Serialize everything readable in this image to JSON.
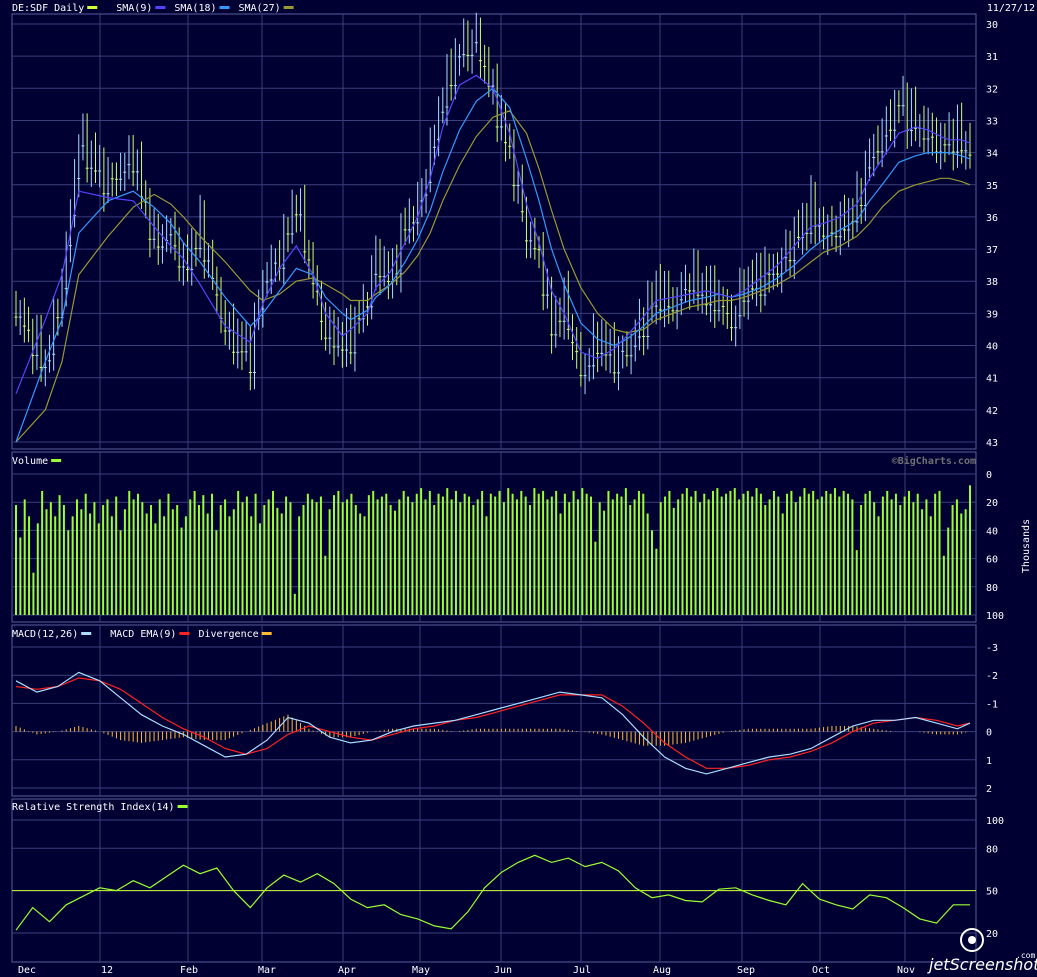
{
  "header": {
    "date": "11/27/12"
  },
  "watermark": "©BigCharts.com",
  "screenshot_badge": {
    "text": "jetScreenshot",
    "suffix": ".com"
  },
  "colors": {
    "background": "#000033",
    "grid": "#3a3f7a",
    "up_candle": "#ccff66",
    "down_candle": "#aaddff",
    "sma9": "#5544ff",
    "sma18": "#3399ff",
    "sma27": "#999933",
    "volume": "#99ff33",
    "macd": "#aaddff",
    "macd_ema": "#ff2222",
    "divergence": "#ffbb33",
    "rsi": "#99ff33",
    "rsi_midline": "#ccff33"
  },
  "chart_data": [
    {
      "type": "candlestick",
      "title": "DE:SDF Daily",
      "legend": [
        {
          "name": "DE:SDF Daily",
          "color": "#ccff33"
        },
        {
          "name": "SMA(9)",
          "color": "#5544ff"
        },
        {
          "name": "SMA(18)",
          "color": "#3399ff"
        },
        {
          "name": "SMA(27)",
          "color": "#999933"
        }
      ],
      "ylim": [
        30,
        43
      ],
      "yticks": [
        30,
        31,
        32,
        33,
        34,
        35,
        36,
        37,
        38,
        39,
        40,
        41,
        42,
        43
      ],
      "xticks": [
        "Dec",
        "12",
        "Feb",
        "Mar",
        "Apr",
        "May",
        "Jun",
        "Jul",
        "Aug",
        "Sep",
        "Oct",
        "Nov"
      ],
      "x": [
        0,
        14,
        22,
        30,
        44,
        56,
        66,
        74,
        80,
        88,
        100,
        112,
        118,
        126,
        134,
        142,
        148,
        156,
        160,
        168,
        172,
        179,
        186,
        192,
        198,
        204,
        212,
        220,
        228,
        236,
        244,
        250,
        256,
        262,
        270,
        278,
        286,
        292,
        300,
        306,
        314,
        322,
        330,
        336,
        342,
        348,
        356,
        364,
        372,
        380,
        386,
        394,
        402,
        408,
        414,
        422,
        430,
        436,
        442,
        446,
        452,
        456
      ],
      "close": [
        38.9,
        40.6,
        38.2,
        33.6,
        35.0,
        34.1,
        36.8,
        36.5,
        37.6,
        36.4,
        39.5,
        40.3,
        38.0,
        37.2,
        35.5,
        38.0,
        39.6,
        39.9,
        39.7,
        38.5,
        37.3,
        38.0,
        36.2,
        35.8,
        34.1,
        32.2,
        30.8,
        30.5,
        32.2,
        34.0,
        36.5,
        37.2,
        39.4,
        38.7,
        40.9,
        39.8,
        40.4,
        40.2,
        39.2,
        38.3,
        38.8,
        37.9,
        38.4,
        38.6,
        39.3,
        38.2,
        37.9,
        37.6,
        36.7,
        35.8,
        36.5,
        36.3,
        35.7,
        34.1,
        33.5,
        32.4,
        33.1,
        33.4,
        33.8,
        33.5,
        33.6,
        33.9
      ],
      "sma9": [
        41.5,
        39.2,
        37.8,
        35.2,
        35.4,
        35.5,
        36.3,
        36.9,
        37.3,
        38.1,
        39.4,
        39.9,
        38.7,
        37.6,
        36.9,
        37.8,
        39.0,
        39.7,
        39.5,
        39.0,
        38.2,
        37.7,
        36.8,
        36.0,
        34.8,
        33.2,
        31.9,
        31.6,
        32.0,
        33.4,
        35.6,
        36.8,
        38.3,
        39.0,
        40.2,
        40.4,
        40.1,
        39.7,
        39.1,
        38.6,
        38.5,
        38.4,
        38.3,
        38.4,
        38.5,
        38.3,
        37.9,
        37.5,
        36.9,
        36.3,
        36.2,
        36.0,
        35.6,
        34.8,
        34.2,
        33.4,
        33.2,
        33.3,
        33.5,
        33.6,
        33.6,
        33.7
      ],
      "sma18": [
        43.0,
        40.5,
        39.2,
        36.5,
        35.5,
        35.2,
        35.7,
        36.2,
        36.8,
        37.4,
        38.5,
        39.4,
        39.0,
        38.3,
        37.6,
        37.8,
        38.5,
        39.0,
        39.2,
        38.9,
        38.5,
        38.1,
        37.4,
        36.7,
        35.8,
        34.6,
        33.3,
        32.4,
        32.0,
        32.6,
        34.2,
        35.5,
        37.0,
        38.1,
        39.3,
        39.8,
        40.0,
        39.8,
        39.4,
        39.0,
        38.8,
        38.6,
        38.5,
        38.4,
        38.5,
        38.4,
        38.2,
        37.9,
        37.5,
        37.0,
        36.7,
        36.4,
        36.1,
        35.5,
        35.0,
        34.3,
        34.1,
        34.0,
        34.0,
        34.0,
        34.1,
        34.2
      ],
      "sma27": [
        43.0,
        42.0,
        40.5,
        37.8,
        36.6,
        35.7,
        35.3,
        35.6,
        36.0,
        36.6,
        37.4,
        38.3,
        38.6,
        38.4,
        38.0,
        37.9,
        38.1,
        38.4,
        38.6,
        38.6,
        38.4,
        38.1,
        37.7,
        37.2,
        36.5,
        35.5,
        34.4,
        33.5,
        32.9,
        32.7,
        33.4,
        34.5,
        35.8,
        37.0,
        38.2,
        39.0,
        39.5,
        39.6,
        39.5,
        39.2,
        39.0,
        38.8,
        38.7,
        38.6,
        38.6,
        38.5,
        38.3,
        38.1,
        37.8,
        37.4,
        37.1,
        36.9,
        36.6,
        36.2,
        35.7,
        35.2,
        35.0,
        34.9,
        34.8,
        34.8,
        34.9,
        35.0
      ]
    },
    {
      "type": "bar",
      "title": "Volume",
      "ylim": [
        0,
        100
      ],
      "yticks": [
        0,
        20,
        40,
        60,
        80,
        100
      ],
      "yunit_label": "Thousands",
      "values": [
        22,
        45,
        18,
        30,
        70,
        35,
        12,
        25,
        20,
        30,
        15,
        22,
        40,
        30,
        18,
        25,
        14,
        28,
        20,
        35,
        22,
        18,
        30,
        16,
        40,
        25,
        12,
        18,
        14,
        20,
        28,
        22,
        35,
        18,
        30,
        14,
        25,
        22,
        38,
        30,
        18,
        12,
        22,
        15,
        28,
        14,
        40,
        22,
        18,
        30,
        25,
        12,
        20,
        16,
        30,
        14,
        35,
        22,
        18,
        12,
        24,
        28,
        16,
        20,
        85,
        30,
        22,
        14,
        18,
        20,
        16,
        58,
        25,
        15,
        12,
        20,
        18,
        14,
        22,
        28,
        30,
        15,
        12,
        18,
        16,
        14,
        22,
        26,
        18,
        12,
        16,
        20,
        14,
        10,
        18,
        12,
        22,
        14,
        16,
        10,
        18,
        12,
        20,
        14,
        16,
        22,
        18,
        12,
        30,
        14,
        16,
        12,
        20,
        10,
        14,
        18,
        12,
        16,
        22,
        10,
        14,
        12,
        18,
        16,
        12,
        28,
        14,
        20,
        12,
        18,
        10,
        14,
        16,
        48,
        20,
        26,
        12,
        18,
        14,
        16,
        10,
        22,
        18,
        12,
        14,
        28,
        40,
        53,
        20,
        16,
        12,
        24,
        18,
        14,
        10,
        16,
        12,
        20,
        14,
        18,
        12,
        10,
        16,
        14,
        12,
        10,
        18,
        14,
        12,
        16,
        10,
        14,
        22,
        18,
        12,
        16,
        28,
        14,
        12,
        20,
        16,
        10,
        14,
        12,
        18,
        16,
        12,
        14,
        10,
        16,
        12,
        14,
        18,
        54,
        22,
        14,
        12,
        20,
        30,
        16,
        12,
        18,
        14,
        22,
        16,
        12,
        20,
        14,
        25,
        18,
        30,
        14,
        12,
        58,
        38,
        22,
        18,
        28,
        25,
        8
      ]
    },
    {
      "type": "line",
      "title": "MACD(12,26)",
      "legend": [
        {
          "name": "MACD(12,26)",
          "color": "#aaddff"
        },
        {
          "name": "MACD EMA(9)",
          "color": "#ff2222"
        },
        {
          "name": "Divergence",
          "color": "#ffbb33"
        }
      ],
      "ylim": [
        -3,
        2
      ],
      "yticks": [
        -3,
        -2,
        -1,
        0,
        1,
        2
      ],
      "x": [
        0,
        10,
        20,
        30,
        40,
        50,
        60,
        70,
        80,
        90,
        100,
        110,
        120,
        130,
        140,
        150,
        160,
        170,
        180,
        190,
        200,
        210,
        220,
        230,
        240,
        250,
        260,
        270,
        280,
        290,
        300,
        310,
        320,
        330,
        340,
        350,
        360,
        370,
        380,
        390,
        400,
        410,
        420,
        430,
        440,
        450,
        456
      ],
      "macd": [
        -1.8,
        -1.4,
        -1.6,
        -2.1,
        -1.8,
        -1.2,
        -0.6,
        -0.2,
        0.1,
        0.5,
        0.9,
        0.8,
        0.3,
        -0.5,
        -0.3,
        0.2,
        0.4,
        0.3,
        0.0,
        -0.2,
        -0.3,
        -0.4,
        -0.6,
        -0.8,
        -1.0,
        -1.2,
        -1.4,
        -1.3,
        -1.2,
        -0.6,
        0.2,
        0.9,
        1.3,
        1.5,
        1.3,
        1.1,
        0.9,
        0.8,
        0.6,
        0.2,
        -0.2,
        -0.4,
        -0.4,
        -0.5,
        -0.3,
        -0.1,
        -0.3
      ],
      "macd_ema": [
        -1.6,
        -1.5,
        -1.6,
        -1.9,
        -1.8,
        -1.5,
        -1.0,
        -0.5,
        -0.1,
        0.2,
        0.6,
        0.8,
        0.6,
        0.1,
        -0.2,
        0.0,
        0.2,
        0.3,
        0.1,
        -0.1,
        -0.2,
        -0.4,
        -0.5,
        -0.7,
        -0.9,
        -1.1,
        -1.3,
        -1.3,
        -1.3,
        -0.9,
        -0.3,
        0.4,
        0.9,
        1.3,
        1.3,
        1.2,
        1.0,
        0.9,
        0.7,
        0.4,
        0.0,
        -0.3,
        -0.4,
        -0.5,
        -0.4,
        -0.2,
        -0.3
      ],
      "divergence": [
        -0.2,
        0.1,
        0.0,
        -0.2,
        0.0,
        0.3,
        0.4,
        0.3,
        0.2,
        0.3,
        0.3,
        0.0,
        -0.3,
        -0.6,
        -0.1,
        0.2,
        0.2,
        0.0,
        -0.1,
        -0.1,
        -0.1,
        0.0,
        -0.1,
        -0.1,
        -0.1,
        -0.1,
        -0.1,
        0.0,
        0.1,
        0.3,
        0.5,
        0.5,
        0.4,
        0.2,
        0.0,
        -0.1,
        -0.1,
        -0.1,
        -0.1,
        -0.2,
        -0.2,
        -0.1,
        0.0,
        0.0,
        0.1,
        0.1,
        0.0
      ]
    },
    {
      "type": "line",
      "title": "Relative Strength Index(14)",
      "legend": [
        {
          "name": "Relative Strength Index(14)",
          "color": "#99ff33"
        }
      ],
      "ylim": [
        0,
        100
      ],
      "yticks": [
        20,
        50,
        80,
        100
      ],
      "reference_line": 50,
      "x": [
        0,
        8,
        16,
        24,
        32,
        40,
        48,
        56,
        64,
        72,
        80,
        88,
        96,
        104,
        112,
        120,
        128,
        136,
        144,
        152,
        160,
        168,
        176,
        184,
        192,
        200,
        208,
        216,
        224,
        232,
        240,
        248,
        256,
        264,
        272,
        280,
        288,
        296,
        304,
        312,
        320,
        328,
        336,
        344,
        352,
        360,
        368,
        376,
        384,
        392,
        400,
        408,
        416,
        424,
        432,
        440,
        448,
        456
      ],
      "values": [
        22,
        38,
        28,
        40,
        46,
        52,
        50,
        57,
        52,
        60,
        68,
        62,
        66,
        50,
        38,
        52,
        61,
        56,
        62,
        55,
        44,
        38,
        40,
        33,
        30,
        25,
        23,
        35,
        52,
        63,
        70,
        75,
        70,
        73,
        67,
        70,
        64,
        52,
        45,
        47,
        43,
        42,
        51,
        52,
        47,
        43,
        40,
        55,
        44,
        40,
        37,
        47,
        45,
        38,
        30,
        27,
        40,
        40
      ]
    }
  ]
}
